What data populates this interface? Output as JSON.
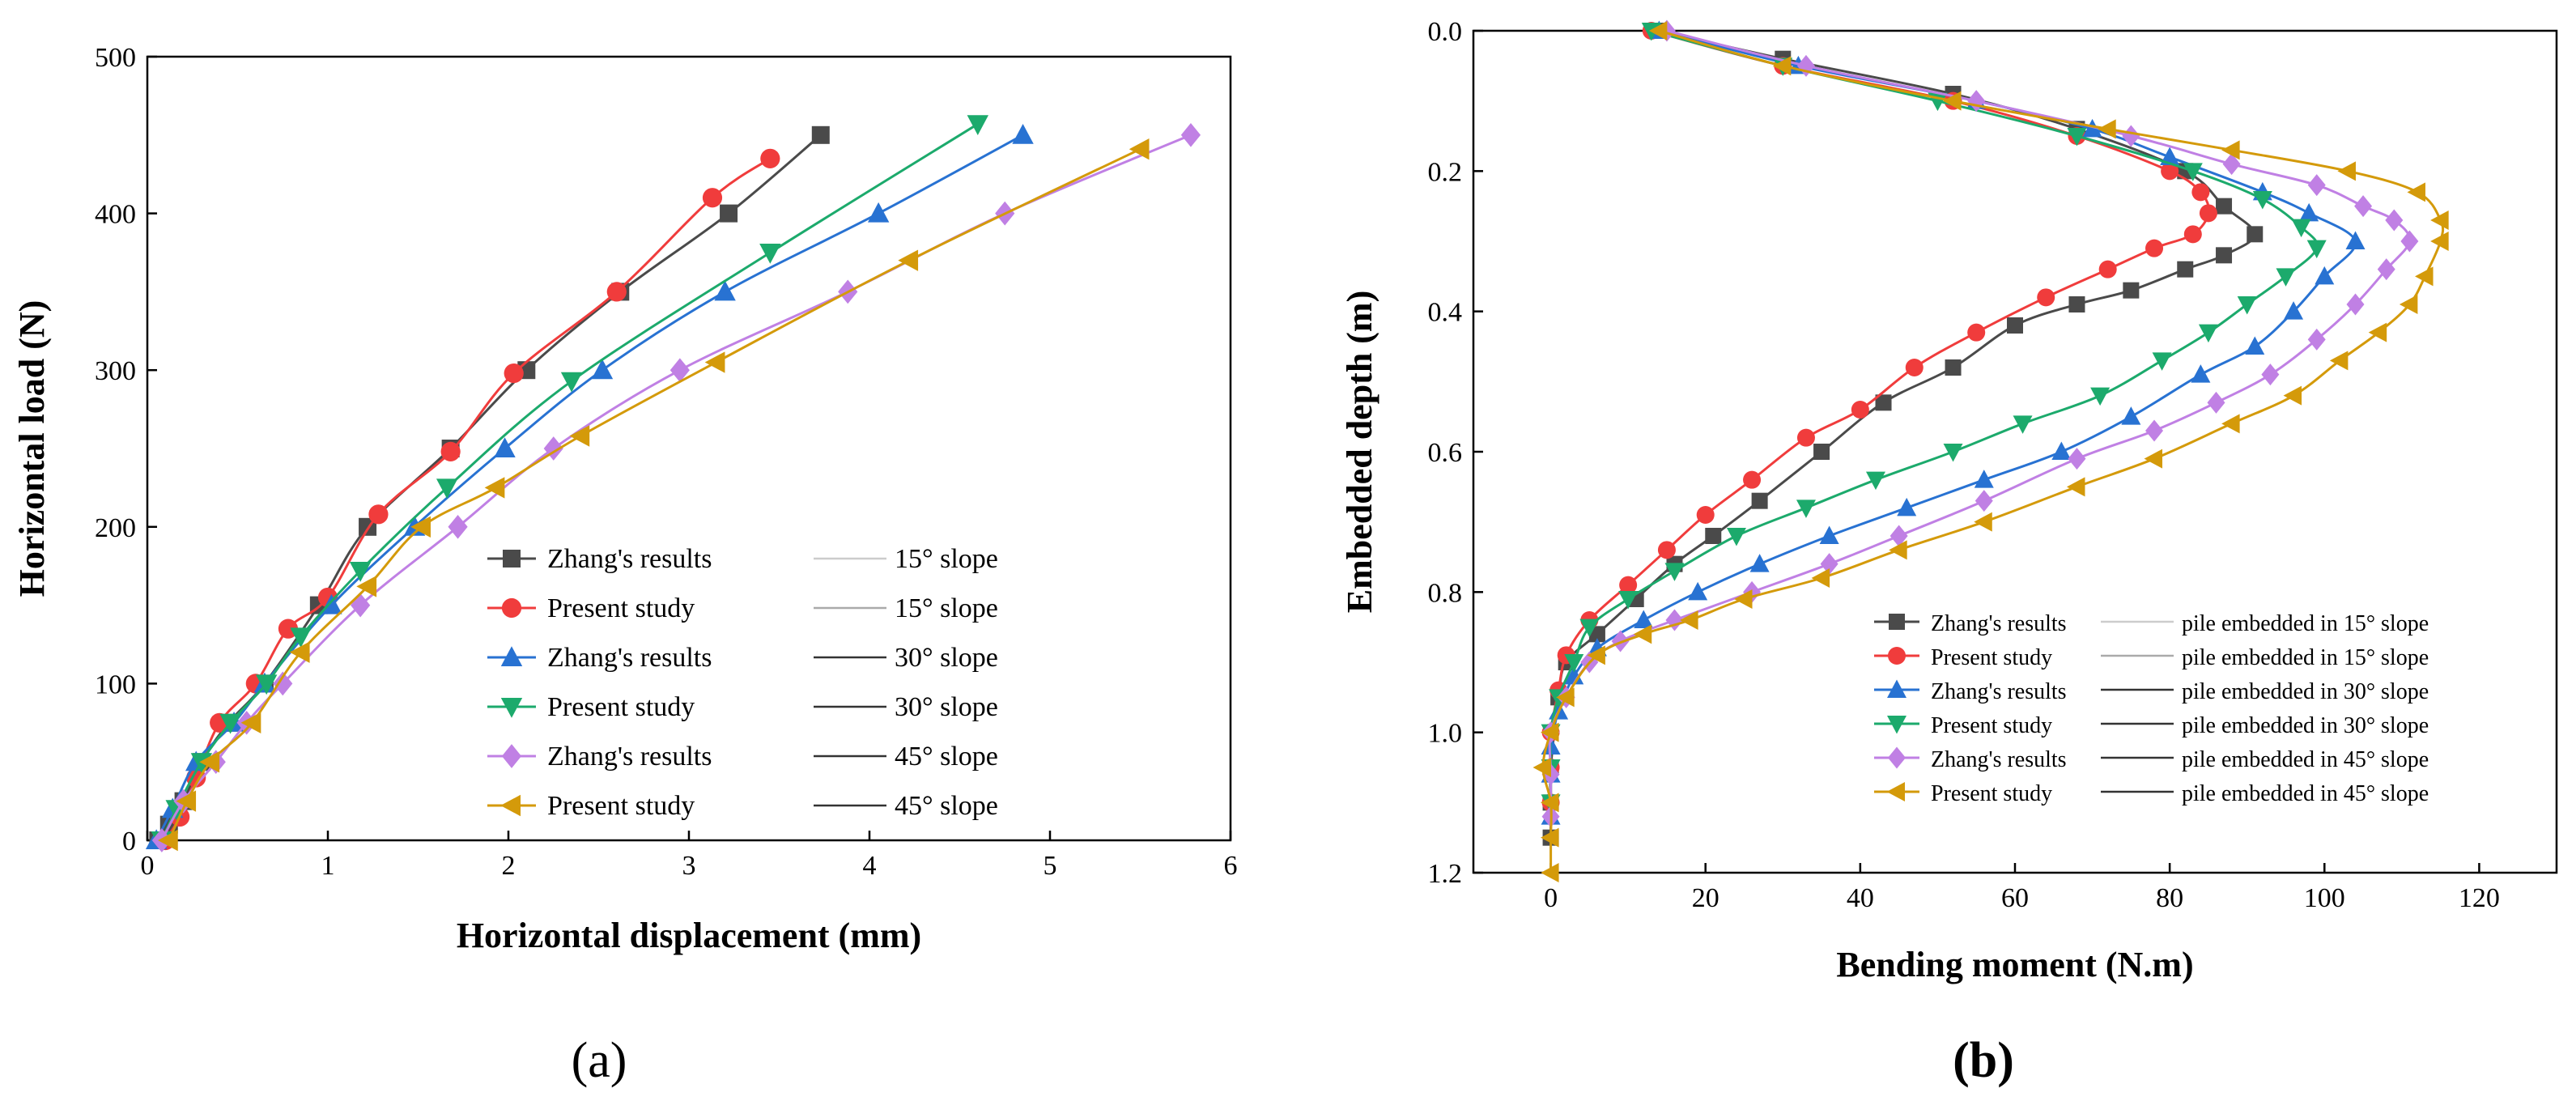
{
  "chart_data": [
    {
      "panel": "a",
      "type": "line",
      "title": "",
      "xlabel": "Horizontal displacement (mm)",
      "ylabel": "Horizontal load (N)",
      "xlim": [
        0,
        6
      ],
      "ylim": [
        0,
        500
      ],
      "xticks": [
        "0",
        "1",
        "2",
        "3",
        "4",
        "5",
        "6"
      ],
      "yticks": [
        "0",
        "100",
        "200",
        "300",
        "400",
        "500"
      ],
      "legend_position": "bottom-right",
      "series": [
        {
          "name": "Zhang's results",
          "line_label": "15° slope",
          "color": "#4a4a4a",
          "marker": "square",
          "points": [
            [
              0.06,
              0
            ],
            [
              0.12,
              10
            ],
            [
              0.2,
              25
            ],
            [
              0.3,
              50
            ],
            [
              0.45,
              75
            ],
            [
              0.65,
              100
            ],
            [
              0.95,
              150
            ],
            [
              1.22,
              200
            ],
            [
              1.68,
              250
            ],
            [
              2.1,
              300
            ],
            [
              2.62,
              350
            ],
            [
              3.22,
              400
            ],
            [
              3.73,
              450
            ]
          ]
        },
        {
          "name": "Present study",
          "line_label": "15° slope",
          "color": "#f03c3c",
          "marker": "circle",
          "points": [
            [
              0.1,
              0
            ],
            [
              0.18,
              15
            ],
            [
              0.27,
              40
            ],
            [
              0.4,
              75
            ],
            [
              0.6,
              100
            ],
            [
              0.78,
              135
            ],
            [
              1.0,
              155
            ],
            [
              1.28,
              208
            ],
            [
              1.68,
              248
            ],
            [
              2.03,
              298
            ],
            [
              2.6,
              350
            ],
            [
              3.13,
              410
            ],
            [
              3.45,
              435
            ]
          ]
        },
        {
          "name": "Zhang's results",
          "line_label": "30° slope",
          "color": "#2872d2",
          "marker": "triangle-up",
          "points": [
            [
              0.05,
              0
            ],
            [
              0.14,
              20
            ],
            [
              0.27,
              50
            ],
            [
              0.48,
              75
            ],
            [
              0.65,
              100
            ],
            [
              1.02,
              150
            ],
            [
              1.48,
              200
            ],
            [
              1.98,
              250
            ],
            [
              2.52,
              300
            ],
            [
              3.2,
              350
            ],
            [
              4.05,
              400
            ],
            [
              4.85,
              450
            ]
          ]
        },
        {
          "name": "Present study",
          "line_label": "30° slope",
          "color": "#1caa6c",
          "marker": "triangle-down",
          "points": [
            [
              0.08,
              0
            ],
            [
              0.16,
              20
            ],
            [
              0.3,
              50
            ],
            [
              0.46,
              75
            ],
            [
              0.66,
              100
            ],
            [
              0.85,
              130
            ],
            [
              1.18,
              172
            ],
            [
              1.66,
              225
            ],
            [
              2.35,
              293
            ],
            [
              3.45,
              375
            ],
            [
              4.6,
              457
            ]
          ]
        },
        {
          "name": "Zhang's results",
          "line_label": "45° slope",
          "color": "#c080e4",
          "marker": "diamond",
          "points": [
            [
              0.08,
              0
            ],
            [
              0.2,
              25
            ],
            [
              0.38,
              50
            ],
            [
              0.55,
              75
            ],
            [
              0.75,
              100
            ],
            [
              1.18,
              150
            ],
            [
              1.72,
              200
            ],
            [
              2.25,
              250
            ],
            [
              2.95,
              300
            ],
            [
              3.88,
              350
            ],
            [
              4.75,
              400
            ],
            [
              5.78,
              450
            ]
          ]
        },
        {
          "name": "Present study",
          "line_label": "45° slope",
          "color": "#d49a0a",
          "marker": "triangle-left",
          "points": [
            [
              0.12,
              0
            ],
            [
              0.22,
              25
            ],
            [
              0.35,
              50
            ],
            [
              0.58,
              75
            ],
            [
              0.85,
              120
            ],
            [
              1.22,
              162
            ],
            [
              1.52,
              200
            ],
            [
              1.93,
              225
            ],
            [
              2.4,
              258
            ],
            [
              3.15,
              305
            ],
            [
              4.22,
              370
            ],
            [
              5.5,
              441
            ]
          ]
        }
      ]
    },
    {
      "panel": "b",
      "type": "line",
      "title": "",
      "xlabel": "Bending moment (N.m)",
      "ylabel": "Embedded depth (m)",
      "xlim": [
        -10,
        130
      ],
      "ylim": [
        0,
        1.2
      ],
      "y_inverted": true,
      "xticks": [
        "0",
        "20",
        "40",
        "60",
        "80",
        "100",
        "120"
      ],
      "yticks": [
        "0.0",
        "0.2",
        "0.4",
        "0.6",
        "0.8",
        "1.0",
        "1.2"
      ],
      "legend_position": "bottom-right",
      "series": [
        {
          "name": "Zhang's results",
          "line_label": "pile embedded in 15° slope",
          "color": "#4a4a4a",
          "marker": "square",
          "points": [
            [
              14,
              0.0
            ],
            [
              30,
              0.04
            ],
            [
              52,
              0.09
            ],
            [
              68,
              0.14
            ],
            [
              82,
              0.2
            ],
            [
              87,
              0.25
            ],
            [
              91,
              0.29
            ],
            [
              87,
              0.32
            ],
            [
              82,
              0.34
            ],
            [
              75,
              0.37
            ],
            [
              68,
              0.39
            ],
            [
              60,
              0.42
            ],
            [
              52,
              0.48
            ],
            [
              43,
              0.53
            ],
            [
              35,
              0.6
            ],
            [
              27,
              0.67
            ],
            [
              21,
              0.72
            ],
            [
              16,
              0.76
            ],
            [
              11,
              0.81
            ],
            [
              6,
              0.86
            ],
            [
              2,
              0.9
            ],
            [
              1,
              0.95
            ],
            [
              0,
              1.05
            ],
            [
              0,
              1.1
            ],
            [
              0,
              1.15
            ]
          ]
        },
        {
          "name": "Present study",
          "line_label": "pile embedded in 15° slope",
          "color": "#f03c3c",
          "marker": "circle",
          "points": [
            [
              13,
              0.0
            ],
            [
              30,
              0.05
            ],
            [
              52,
              0.1
            ],
            [
              68,
              0.15
            ],
            [
              80,
              0.2
            ],
            [
              84,
              0.23
            ],
            [
              85,
              0.26
            ],
            [
              83,
              0.29
            ],
            [
              78,
              0.31
            ],
            [
              72,
              0.34
            ],
            [
              64,
              0.38
            ],
            [
              55,
              0.43
            ],
            [
              47,
              0.48
            ],
            [
              40,
              0.54
            ],
            [
              33,
              0.58
            ],
            [
              26,
              0.64
            ],
            [
              20,
              0.69
            ],
            [
              15,
              0.74
            ],
            [
              10,
              0.79
            ],
            [
              5,
              0.84
            ],
            [
              2,
              0.89
            ],
            [
              1,
              0.94
            ],
            [
              0,
              1.0
            ],
            [
              0,
              1.05
            ],
            [
              0,
              1.1
            ]
          ]
        },
        {
          "name": "Zhang's results",
          "line_label": "pile embedded in 30° slope",
          "color": "#2872d2",
          "marker": "triangle-up",
          "points": [
            [
              14,
              0.0
            ],
            [
              32,
              0.05
            ],
            [
              55,
              0.1
            ],
            [
              70,
              0.14
            ],
            [
              80,
              0.18
            ],
            [
              92,
              0.23
            ],
            [
              98,
              0.26
            ],
            [
              104,
              0.3
            ],
            [
              100,
              0.35
            ],
            [
              96,
              0.4
            ],
            [
              91,
              0.45
            ],
            [
              84,
              0.49
            ],
            [
              75,
              0.55
            ],
            [
              66,
              0.6
            ],
            [
              56,
              0.64
            ],
            [
              46,
              0.68
            ],
            [
              36,
              0.72
            ],
            [
              27,
              0.76
            ],
            [
              19,
              0.8
            ],
            [
              12,
              0.84
            ],
            [
              6,
              0.88
            ],
            [
              3,
              0.92
            ],
            [
              1,
              0.97
            ],
            [
              0,
              1.02
            ],
            [
              0,
              1.06
            ],
            [
              0,
              1.12
            ]
          ]
        },
        {
          "name": "Present study",
          "line_label": "pile embedded in 30° slope",
          "color": "#1caa6c",
          "marker": "triangle-down",
          "points": [
            [
              13,
              0.0
            ],
            [
              30,
              0.05
            ],
            [
              50,
              0.1
            ],
            [
              68,
              0.15
            ],
            [
              83,
              0.2
            ],
            [
              92,
              0.24
            ],
            [
              97,
              0.28
            ],
            [
              99,
              0.31
            ],
            [
              95,
              0.35
            ],
            [
              90,
              0.39
            ],
            [
              85,
              0.43
            ],
            [
              79,
              0.47
            ],
            [
              71,
              0.52
            ],
            [
              61,
              0.56
            ],
            [
              52,
              0.6
            ],
            [
              42,
              0.64
            ],
            [
              33,
              0.68
            ],
            [
              24,
              0.72
            ],
            [
              16,
              0.77
            ],
            [
              10,
              0.81
            ],
            [
              5,
              0.85
            ],
            [
              3,
              0.9
            ],
            [
              1,
              0.95
            ],
            [
              0,
              1.0
            ],
            [
              0,
              1.05
            ],
            [
              0,
              1.1
            ]
          ]
        },
        {
          "name": "Zhang's results",
          "line_label": "pile embedded in 45° slope",
          "color": "#c080e4",
          "marker": "diamond",
          "points": [
            [
              15,
              0.0
            ],
            [
              33,
              0.05
            ],
            [
              55,
              0.1
            ],
            [
              75,
              0.15
            ],
            [
              88,
              0.19
            ],
            [
              99,
              0.22
            ],
            [
              105,
              0.25
            ],
            [
              109,
              0.27
            ],
            [
              111,
              0.3
            ],
            [
              108,
              0.34
            ],
            [
              104,
              0.39
            ],
            [
              99,
              0.44
            ],
            [
              93,
              0.49
            ],
            [
              86,
              0.53
            ],
            [
              78,
              0.57
            ],
            [
              68,
              0.61
            ],
            [
              56,
              0.67
            ],
            [
              45,
              0.72
            ],
            [
              36,
              0.76
            ],
            [
              26,
              0.8
            ],
            [
              16,
              0.84
            ],
            [
              9,
              0.87
            ],
            [
              5,
              0.9
            ],
            [
              2,
              0.95
            ],
            [
              0,
              1.0
            ],
            [
              0,
              1.06
            ],
            [
              0,
              1.12
            ]
          ]
        },
        {
          "name": "Present study",
          "line_label": "pile embedded in 45° slope",
          "color": "#d49a0a",
          "marker": "triangle-left",
          "points": [
            [
              14,
              0.0
            ],
            [
              30,
              0.05
            ],
            [
              52,
              0.1
            ],
            [
              72,
              0.14
            ],
            [
              88,
              0.17
            ],
            [
              103,
              0.2
            ],
            [
              112,
              0.23
            ],
            [
              115,
              0.27
            ],
            [
              115,
              0.3
            ],
            [
              113,
              0.35
            ],
            [
              111,
              0.39
            ],
            [
              107,
              0.43
            ],
            [
              102,
              0.47
            ],
            [
              96,
              0.52
            ],
            [
              88,
              0.56
            ],
            [
              78,
              0.61
            ],
            [
              68,
              0.65
            ],
            [
              56,
              0.7
            ],
            [
              45,
              0.74
            ],
            [
              35,
              0.78
            ],
            [
              25,
              0.81
            ],
            [
              18,
              0.84
            ],
            [
              12,
              0.86
            ],
            [
              6,
              0.89
            ],
            [
              2,
              0.95
            ],
            [
              0,
              1.0
            ],
            [
              -1,
              1.05
            ],
            [
              0,
              1.1
            ],
            [
              0,
              1.15
            ],
            [
              0,
              1.2
            ]
          ]
        }
      ]
    }
  ],
  "labels": {
    "panel_a": "(a)",
    "panel_b": "(b)"
  }
}
